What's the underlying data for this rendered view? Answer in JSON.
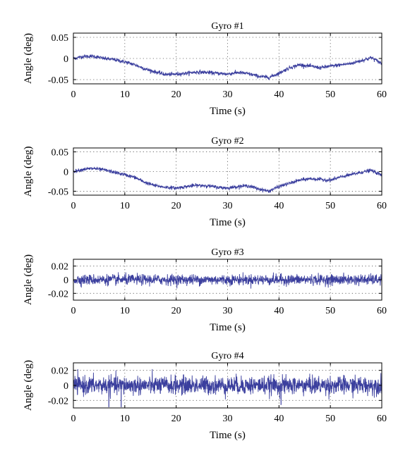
{
  "figure": {
    "line_color": "#3b3f9e"
  },
  "chart_data": [
    {
      "type": "line",
      "title": "Gyro #1",
      "xlabel": "Time (s)",
      "ylabel": "Angle (deg)",
      "xlim": [
        0,
        60
      ],
      "ylim": [
        -0.06,
        0.06
      ],
      "xticks": [
        0,
        10,
        20,
        30,
        40,
        50,
        60
      ],
      "xtick_labels": [
        "0",
        "10",
        "20",
        "30",
        "40",
        "50",
        "60"
      ],
      "yticks": [
        0.05,
        0,
        -0.05
      ],
      "ytick_labels": [
        "0.05",
        "0",
        "-0.05"
      ],
      "grid": true,
      "noise_amplitude": 0.004,
      "series": [
        {
          "x": [
            0,
            2,
            4,
            6,
            8,
            10,
            12,
            14,
            16,
            18,
            20,
            22,
            24,
            26,
            28,
            30,
            32,
            34,
            36,
            38,
            40,
            42,
            44,
            46,
            48,
            50,
            52,
            54,
            56,
            58,
            60
          ],
          "y": [
            0.0,
            0.005,
            0.005,
            0.0,
            -0.003,
            -0.008,
            -0.015,
            -0.025,
            -0.032,
            -0.038,
            -0.037,
            -0.035,
            -0.032,
            -0.033,
            -0.035,
            -0.037,
            -0.033,
            -0.036,
            -0.042,
            -0.045,
            -0.035,
            -0.022,
            -0.015,
            -0.018,
            -0.022,
            -0.018,
            -0.015,
            -0.012,
            -0.005,
            0.002,
            -0.012
          ]
        }
      ]
    },
    {
      "type": "line",
      "title": "Gyro #2",
      "xlabel": "Time (s)",
      "ylabel": "Angle (deg)",
      "xlim": [
        0,
        60
      ],
      "ylim": [
        -0.06,
        0.06
      ],
      "xticks": [
        0,
        10,
        20,
        30,
        40,
        50,
        60
      ],
      "xtick_labels": [
        "0",
        "10",
        "20",
        "30",
        "40",
        "50",
        "60"
      ],
      "yticks": [
        0.05,
        0,
        -0.05
      ],
      "ytick_labels": [
        "0.05",
        "0",
        "-0.05"
      ],
      "grid": true,
      "noise_amplitude": 0.004,
      "series": [
        {
          "x": [
            0,
            2,
            4,
            6,
            8,
            10,
            12,
            14,
            16,
            18,
            20,
            22,
            24,
            26,
            28,
            30,
            32,
            34,
            36,
            38,
            40,
            42,
            44,
            46,
            48,
            50,
            52,
            54,
            56,
            58,
            60
          ],
          "y": [
            0.0,
            0.006,
            0.008,
            0.004,
            -0.002,
            -0.008,
            -0.015,
            -0.028,
            -0.036,
            -0.04,
            -0.042,
            -0.038,
            -0.035,
            -0.036,
            -0.04,
            -0.042,
            -0.038,
            -0.036,
            -0.044,
            -0.05,
            -0.038,
            -0.03,
            -0.022,
            -0.018,
            -0.02,
            -0.022,
            -0.014,
            -0.008,
            -0.002,
            0.003,
            -0.01
          ]
        }
      ]
    },
    {
      "type": "line",
      "title": "Gyro #3",
      "xlabel": "Time (s)",
      "ylabel": "Angle (deg)",
      "xlim": [
        0,
        60
      ],
      "ylim": [
        -0.03,
        0.03
      ],
      "xticks": [
        0,
        10,
        20,
        30,
        40,
        50,
        60
      ],
      "xtick_labels": [
        "0",
        "10",
        "20",
        "30",
        "40",
        "50",
        "60"
      ],
      "yticks": [
        0.02,
        0,
        -0.02
      ],
      "ytick_labels": [
        "0.02",
        "0",
        "-0.02"
      ],
      "grid": true,
      "noise_amplitude": 0.007,
      "series": [
        {
          "x": [
            0,
            10,
            20,
            30,
            40,
            50,
            60
          ],
          "y": [
            0,
            0,
            0,
            0,
            0,
            0,
            0
          ]
        }
      ]
    },
    {
      "type": "line",
      "title": "Gyro #4",
      "xlabel": "Time (s)",
      "ylabel": "Angle (deg)",
      "xlim": [
        0,
        60
      ],
      "ylim": [
        -0.03,
        0.03
      ],
      "xticks": [
        0,
        10,
        20,
        30,
        40,
        50,
        60
      ],
      "xtick_labels": [
        "0",
        "10",
        "20",
        "30",
        "40",
        "50",
        "60"
      ],
      "yticks": [
        0.02,
        0,
        -0.02
      ],
      "ytick_labels": [
        "0.02",
        "0",
        "-0.02"
      ],
      "grid": true,
      "noise_amplitude": 0.011,
      "spikes": [
        {
          "x": 6.9,
          "y": -0.029
        },
        {
          "x": 9.3,
          "y": -0.029
        },
        {
          "x": 40.4,
          "y": -0.026
        }
      ],
      "series": [
        {
          "x": [
            0,
            10,
            20,
            30,
            40,
            50,
            60
          ],
          "y": [
            0,
            0,
            0,
            0,
            0,
            0,
            0
          ]
        }
      ]
    }
  ]
}
